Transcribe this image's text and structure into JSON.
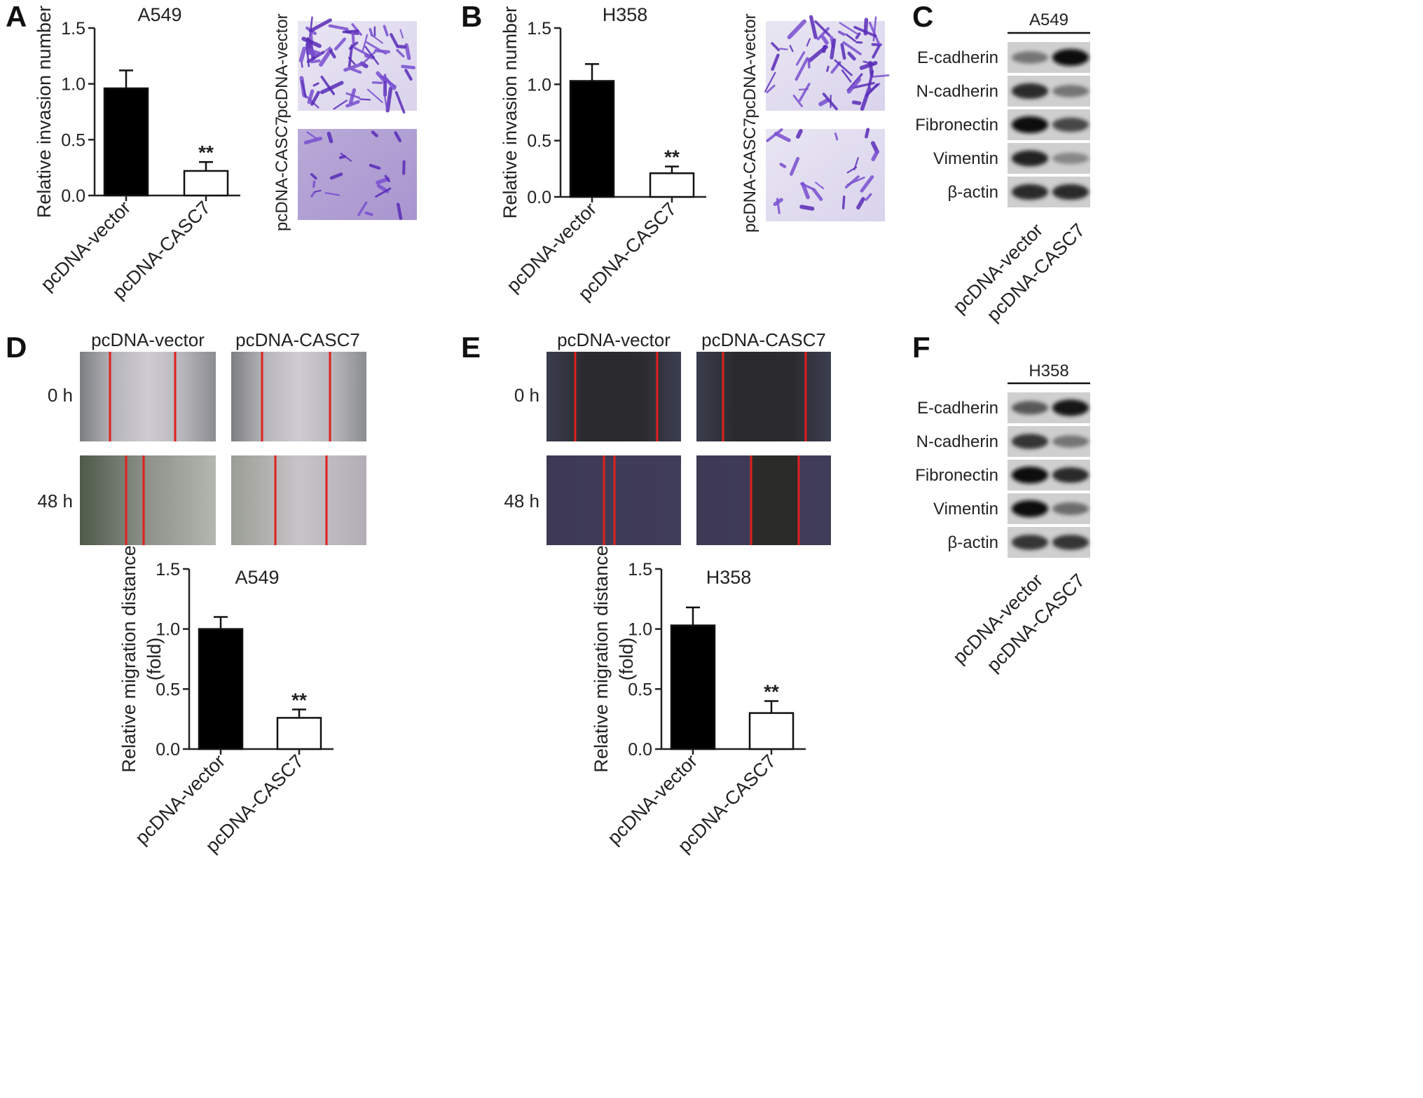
{
  "panel_labels": [
    "A",
    "B",
    "C",
    "D",
    "E",
    "F"
  ],
  "colors": {
    "bar_control": "#000000",
    "bar_treatment": "#ffffff",
    "axis": "#222222",
    "crystal_violet": "#6a3fc0",
    "wound_edge": "#e0201c"
  },
  "invasion_images": {
    "row_labels": [
      "pcDNA-vector",
      "pcDNA-CASC7"
    ]
  },
  "wound_healing": {
    "col_labels": [
      "pcDNA-vector",
      "pcDNA-CASC7"
    ],
    "row_labels": [
      "0 h",
      "48 h"
    ]
  },
  "western_blots": [
    {
      "panel": "C",
      "cell_line": "A549",
      "proteins": [
        "E-cadherin",
        "N-cadherin",
        "Fibronectin",
        "Vimentin",
        "β-actin"
      ],
      "lanes": [
        "pcDNA-vector",
        "pcDNA-CASC7"
      ]
    },
    {
      "panel": "F",
      "cell_line": "H358",
      "proteins": [
        "E-cadherin",
        "N-cadherin",
        "Fibronectin",
        "Vimentin",
        "β-actin"
      ],
      "lanes": [
        "pcDNA-vector",
        "pcDNA-CASC7"
      ]
    }
  ],
  "chart_data": [
    {
      "panel": "A",
      "type": "bar",
      "title": "A549",
      "ylabel": "Relative invasion number",
      "categories": [
        "pcDNA-vector",
        "pcDNA-CASC7"
      ],
      "values": [
        0.96,
        0.22
      ],
      "errors": [
        0.16,
        0.08
      ],
      "significance": [
        "",
        "**"
      ],
      "ylim": [
        0.0,
        1.5
      ],
      "yticks": [
        "0.0",
        "0.5",
        "1.0",
        "1.5"
      ]
    },
    {
      "panel": "B",
      "type": "bar",
      "title": "H358",
      "ylabel": "Relative invasion number",
      "categories": [
        "pcDNA-vector",
        "pcDNA-CASC7"
      ],
      "values": [
        1.03,
        0.21
      ],
      "errors": [
        0.15,
        0.06
      ],
      "significance": [
        "",
        "**"
      ],
      "ylim": [
        0.0,
        1.5
      ],
      "yticks": [
        "0.0",
        "0.5",
        "1.0",
        "1.5"
      ]
    },
    {
      "panel": "D",
      "type": "bar",
      "title": "A549",
      "ylabel": "Relative migration distance",
      "ylabel2": "(fold)",
      "categories": [
        "pcDNA-vector",
        "pcDNA-CASC7"
      ],
      "values": [
        1.0,
        0.26
      ],
      "errors": [
        0.1,
        0.07
      ],
      "significance": [
        "",
        "**"
      ],
      "ylim": [
        0.0,
        1.5
      ],
      "yticks": [
        "0.0",
        "0.5",
        "1.0",
        "1.5"
      ]
    },
    {
      "panel": "E",
      "type": "bar",
      "title": "H358",
      "ylabel": "Relative migration distance",
      "ylabel2": "(fold)",
      "categories": [
        "pcDNA-vector",
        "pcDNA-CASC7"
      ],
      "values": [
        1.03,
        0.3
      ],
      "errors": [
        0.15,
        0.1
      ],
      "significance": [
        "",
        "**"
      ],
      "ylim": [
        0.0,
        1.5
      ],
      "yticks": [
        "0.0",
        "0.5",
        "1.0",
        "1.5"
      ]
    }
  ]
}
